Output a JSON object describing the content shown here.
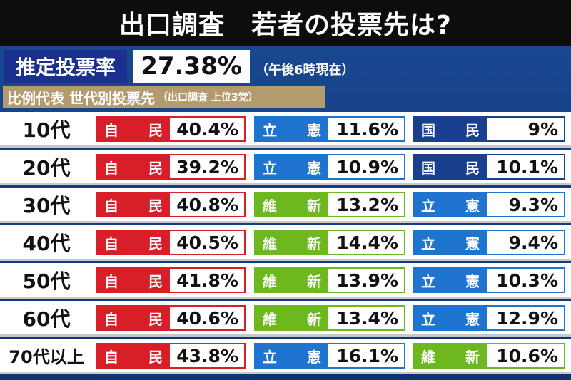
{
  "colors": {
    "jimin": "#d81e29",
    "rikken": "#1f74d0",
    "kokumin": "#1a3f8f",
    "ishin": "#6db81f"
  },
  "chart_data": {
    "type": "table",
    "title": "出口調査　若者の投票先は?",
    "turnout_label": "推定投票率",
    "turnout_value": "27.38%",
    "turnout_note": "（午後6時現在）",
    "subtitle": "比例代表 世代別投票先",
    "subtitle_note": "（出口調査 上位3党）",
    "rows": [
      {
        "age": "10代",
        "parties": [
          {
            "p1": "自",
            "p2": "民",
            "value": "40.4%",
            "color": "#d81e29"
          },
          {
            "p1": "立",
            "p2": "憲",
            "value": "11.6%",
            "color": "#1f74d0"
          },
          {
            "p1": "国",
            "p2": "民",
            "value": "9%",
            "color": "#1a3f8f"
          }
        ]
      },
      {
        "age": "20代",
        "parties": [
          {
            "p1": "自",
            "p2": "民",
            "value": "39.2%",
            "color": "#d81e29"
          },
          {
            "p1": "立",
            "p2": "憲",
            "value": "10.9%",
            "color": "#1f74d0"
          },
          {
            "p1": "国",
            "p2": "民",
            "value": "10.1%",
            "color": "#1a3f8f"
          }
        ]
      },
      {
        "age": "30代",
        "parties": [
          {
            "p1": "自",
            "p2": "民",
            "value": "40.8%",
            "color": "#d81e29"
          },
          {
            "p1": "維",
            "p2": "新",
            "value": "13.2%",
            "color": "#6db81f"
          },
          {
            "p1": "立",
            "p2": "憲",
            "value": "9.3%",
            "color": "#1f74d0"
          }
        ]
      },
      {
        "age": "40代",
        "parties": [
          {
            "p1": "自",
            "p2": "民",
            "value": "40.5%",
            "color": "#d81e29"
          },
          {
            "p1": "維",
            "p2": "新",
            "value": "14.4%",
            "color": "#6db81f"
          },
          {
            "p1": "立",
            "p2": "憲",
            "value": "9.4%",
            "color": "#1f74d0"
          }
        ]
      },
      {
        "age": "50代",
        "parties": [
          {
            "p1": "自",
            "p2": "民",
            "value": "41.8%",
            "color": "#d81e29"
          },
          {
            "p1": "維",
            "p2": "新",
            "value": "13.9%",
            "color": "#6db81f"
          },
          {
            "p1": "立",
            "p2": "憲",
            "value": "10.3%",
            "color": "#1f74d0"
          }
        ]
      },
      {
        "age": "60代",
        "parties": [
          {
            "p1": "自",
            "p2": "民",
            "value": "40.6%",
            "color": "#d81e29"
          },
          {
            "p1": "維",
            "p2": "新",
            "value": "13.4%",
            "color": "#6db81f"
          },
          {
            "p1": "立",
            "p2": "憲",
            "value": "12.9%",
            "color": "#1f74d0"
          }
        ]
      },
      {
        "age": "70代以上",
        "parties": [
          {
            "p1": "自",
            "p2": "民",
            "value": "43.8%",
            "color": "#d81e29"
          },
          {
            "p1": "立",
            "p2": "憲",
            "value": "16.1%",
            "color": "#1f74d0"
          },
          {
            "p1": "維",
            "p2": "新",
            "value": "10.6%",
            "color": "#6db81f"
          }
        ]
      }
    ]
  }
}
